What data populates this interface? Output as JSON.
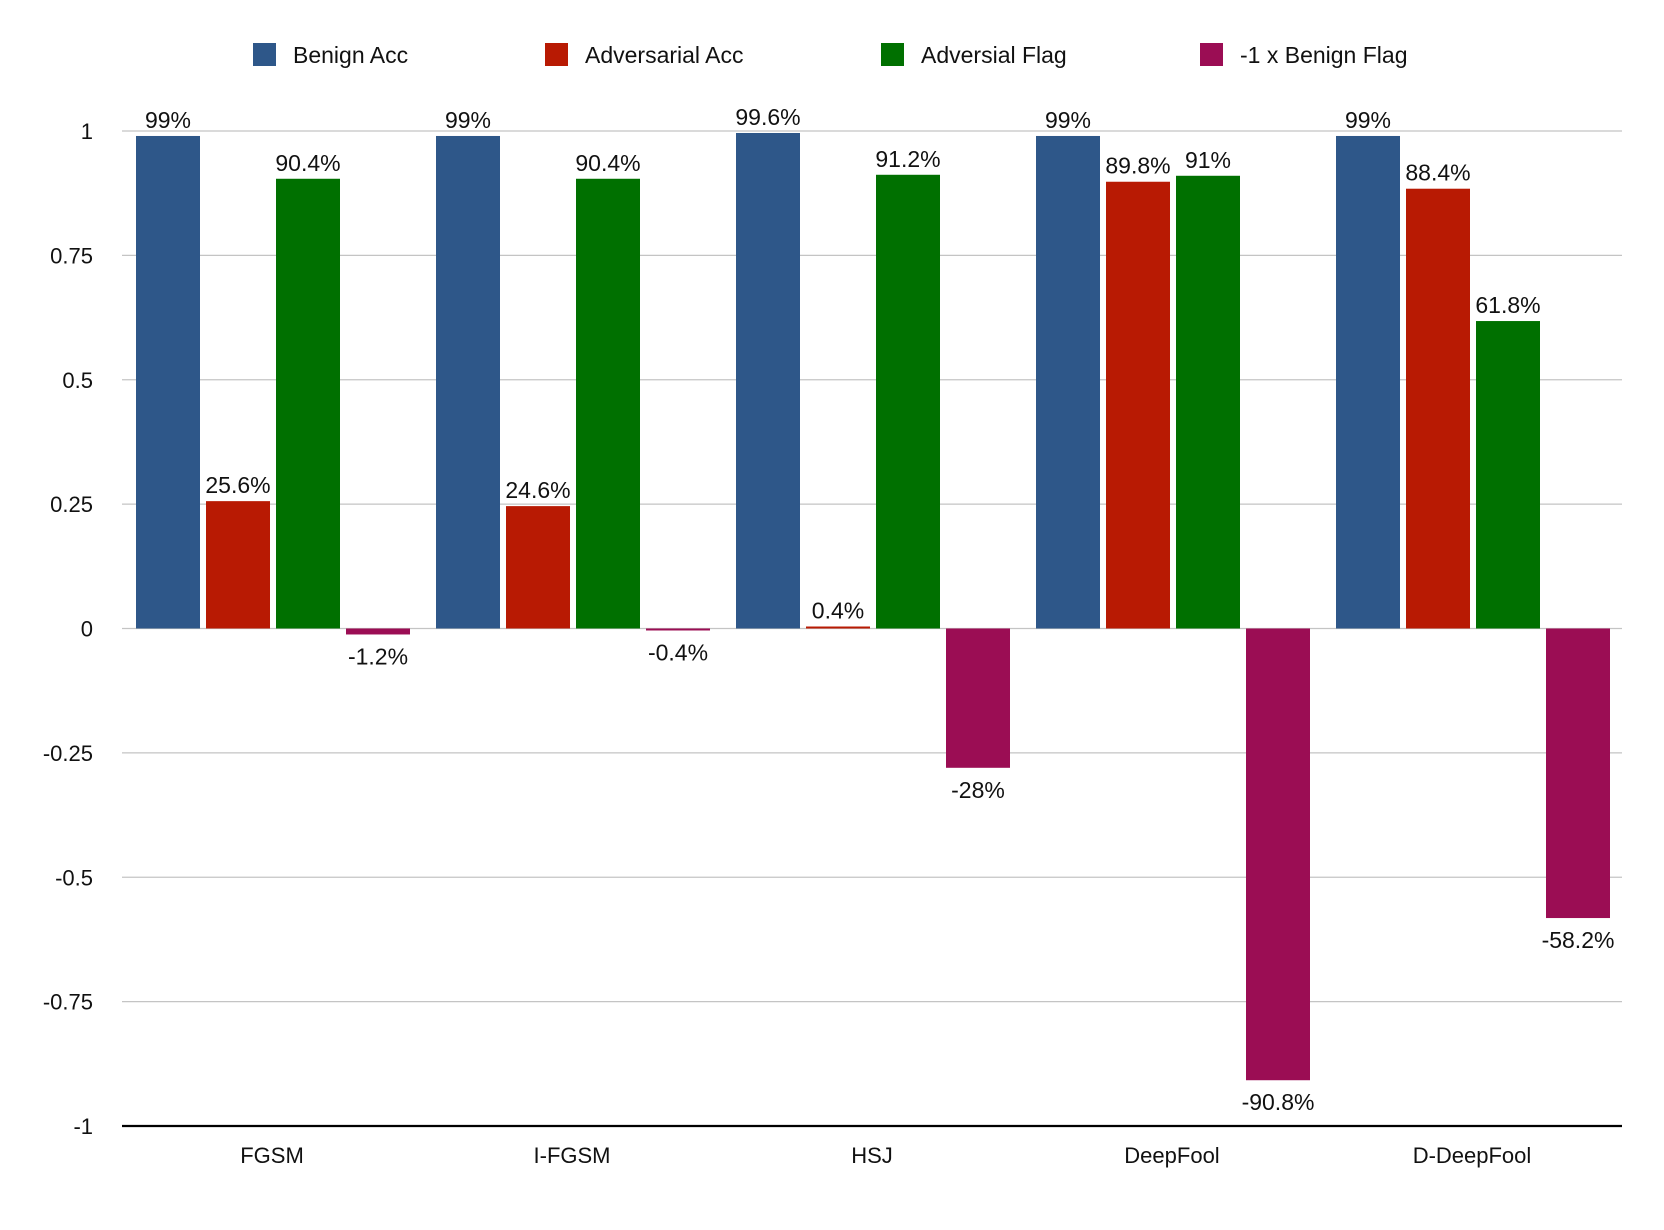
{
  "chart_data": {
    "type": "bar",
    "categories": [
      "FGSM",
      "I-FGSM",
      "HSJ",
      "DeepFool",
      "D-DeepFool"
    ],
    "series": [
      {
        "name": "Benign Acc",
        "color": "#2e5789",
        "values": [
          0.99,
          0.99,
          0.996,
          0.99,
          0.99
        ],
        "labels": [
          "99%",
          "99%",
          "99.6%",
          "99%",
          "99%"
        ]
      },
      {
        "name": "Adversarial Acc",
        "color": "#b81a03",
        "values": [
          0.256,
          0.246,
          0.004,
          0.898,
          0.884
        ],
        "labels": [
          "25.6%",
          "24.6%",
          "0.4%",
          "89.8%",
          "88.4%"
        ]
      },
      {
        "name": "Adversial Flag",
        "color": "#007000",
        "values": [
          0.904,
          0.904,
          0.912,
          0.91,
          0.618
        ],
        "labels": [
          "90.4%",
          "90.4%",
          "91.2%",
          "91%",
          "61.8%"
        ]
      },
      {
        "name": "-1 x Benign Flag",
        "color": "#9b0d54",
        "values": [
          -0.012,
          -0.004,
          -0.28,
          -0.908,
          -0.582
        ],
        "labels": [
          "-1.2%",
          "-0.4%",
          "-28%",
          "-90.8%",
          "-58.2%"
        ]
      }
    ],
    "yticks": [
      "1",
      "0.75",
      "0.5",
      "0.25",
      "0",
      "-0.25",
      "-0.5",
      "-0.75",
      "-1"
    ],
    "ytick_values": [
      1,
      0.75,
      0.5,
      0.25,
      0,
      -0.25,
      -0.5,
      -0.75,
      -1
    ],
    "ylim": [
      -1,
      1
    ],
    "grid": true,
    "legend_position": "top",
    "title": "",
    "xlabel": "",
    "ylabel": ""
  }
}
